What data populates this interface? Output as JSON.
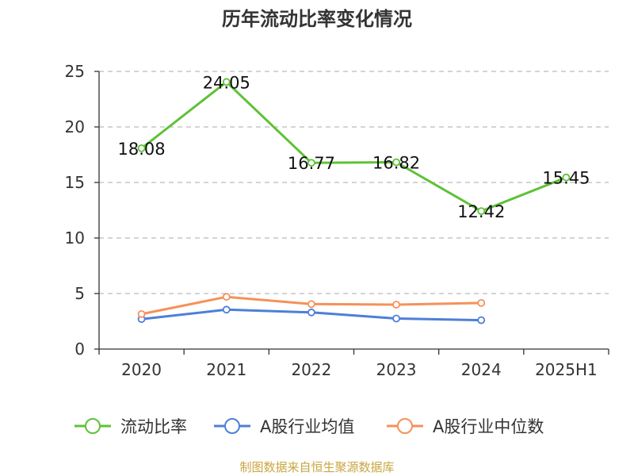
{
  "chart_data": {
    "type": "line",
    "title": "历年流动比率变化情况",
    "categories": [
      "2020",
      "2021",
      "2022",
      "2023",
      "2024",
      "2025H1"
    ],
    "ylim": [
      0,
      25
    ],
    "yticks": [
      0,
      5,
      10,
      15,
      20,
      25
    ],
    "grid": true,
    "legend_position": "bottom",
    "series": [
      {
        "name": "流动比率",
        "color": "#5ec236",
        "values": [
          18.08,
          24.05,
          16.77,
          16.82,
          12.42,
          15.45
        ],
        "labels": [
          "18.08",
          "24.05",
          "16.77",
          "16.82",
          "12.42",
          "15.45"
        ]
      },
      {
        "name": "A股行业均值",
        "color": "#4e7fd8",
        "values": [
          2.7,
          3.55,
          3.3,
          2.75,
          2.6,
          null
        ]
      },
      {
        "name": "A股行业中位数",
        "color": "#f5915a",
        "values": [
          3.15,
          4.7,
          4.05,
          4.0,
          4.15,
          null
        ]
      }
    ]
  },
  "source_text": "制图数据来自恒生聚源数据库"
}
